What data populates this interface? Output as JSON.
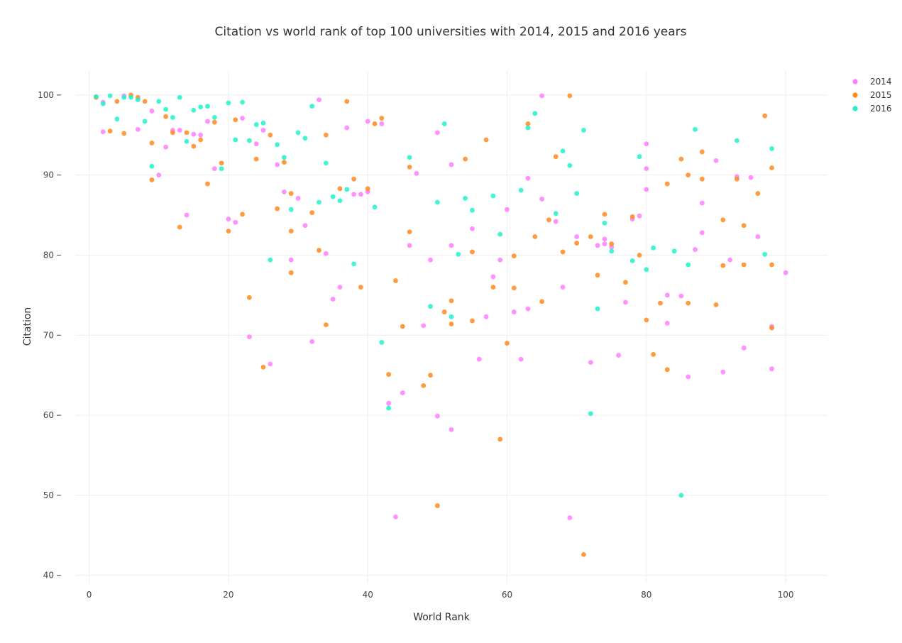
{
  "chart_data": {
    "type": "scatter",
    "title": "Citation vs world rank of top 100 universities with 2014, 2015 and 2016 years",
    "xlabel": "World Rank",
    "ylabel": "Citation",
    "xlim": [
      -2,
      106
    ],
    "ylim": [
      39,
      103
    ],
    "xticks": [
      0,
      20,
      40,
      60,
      80,
      100
    ],
    "yticks": [
      40,
      50,
      60,
      70,
      80,
      90,
      100
    ],
    "grid": true,
    "legend_position": "top-right",
    "series": [
      {
        "name": "2014",
        "color": "#ff7cff",
        "points": [
          [
            2,
            95.4
          ],
          [
            2,
            99.1
          ],
          [
            5,
            99.9
          ],
          [
            7,
            95.7
          ],
          [
            9,
            98
          ],
          [
            10,
            90
          ],
          [
            11,
            93.5
          ],
          [
            12,
            95.6
          ],
          [
            13,
            95.6
          ],
          [
            14,
            85
          ],
          [
            15,
            95.1
          ],
          [
            16,
            95
          ],
          [
            17,
            96.7
          ],
          [
            18,
            90.8
          ],
          [
            20,
            84.5
          ],
          [
            21,
            84.1
          ],
          [
            22,
            97.1
          ],
          [
            23,
            69.8
          ],
          [
            24,
            93.9
          ],
          [
            25,
            95.6
          ],
          [
            26,
            66.4
          ],
          [
            27,
            91.3
          ],
          [
            28,
            87.9
          ],
          [
            29,
            79.4
          ],
          [
            30,
            87.1
          ],
          [
            31,
            83.7
          ],
          [
            32,
            69.2
          ],
          [
            33,
            99.4
          ],
          [
            34,
            80.2
          ],
          [
            35,
            74.5
          ],
          [
            36,
            76
          ],
          [
            37,
            95.9
          ],
          [
            38,
            87.6
          ],
          [
            39,
            87.6
          ],
          [
            40,
            96.7
          ],
          [
            40,
            87.9
          ],
          [
            42,
            96.4
          ],
          [
            43,
            61.5
          ],
          [
            44,
            47.3
          ],
          [
            45,
            62.8
          ],
          [
            47,
            90.2
          ],
          [
            46,
            81.2
          ],
          [
            48,
            71.2
          ],
          [
            49,
            79.4
          ],
          [
            50,
            95.3
          ],
          [
            50,
            59.9
          ],
          [
            52,
            91.3
          ],
          [
            52,
            81.2
          ],
          [
            52,
            58.2
          ],
          [
            55,
            83.3
          ],
          [
            56,
            67
          ],
          [
            57,
            72.3
          ],
          [
            58,
            77.3
          ],
          [
            59,
            79.4
          ],
          [
            60,
            85.7
          ],
          [
            61,
            72.9
          ],
          [
            62,
            67
          ],
          [
            63,
            89.6
          ],
          [
            63,
            73.3
          ],
          [
            65,
            99.9
          ],
          [
            65,
            87
          ],
          [
            67,
            84.2
          ],
          [
            68,
            76
          ],
          [
            69,
            47.2
          ],
          [
            70,
            82.3
          ],
          [
            72,
            66.6
          ],
          [
            73,
            81.2
          ],
          [
            74,
            81.4
          ],
          [
            74,
            82
          ],
          [
            75,
            81
          ],
          [
            76,
            67.5
          ],
          [
            77,
            74.1
          ],
          [
            78,
            84.5
          ],
          [
            79,
            84.9
          ],
          [
            80,
            93.9
          ],
          [
            80,
            90.8
          ],
          [
            80,
            88.2
          ],
          [
            83,
            75
          ],
          [
            83,
            71.5
          ],
          [
            85,
            74.9
          ],
          [
            86,
            64.8
          ],
          [
            87,
            80.7
          ],
          [
            88,
            86.5
          ],
          [
            88,
            82.8
          ],
          [
            90,
            91.8
          ],
          [
            91,
            65.4
          ],
          [
            92,
            79.4
          ],
          [
            93,
            89.8
          ],
          [
            94,
            68.4
          ],
          [
            95,
            89.7
          ],
          [
            96,
            82.3
          ],
          [
            98,
            71.1
          ],
          [
            98,
            65.8
          ],
          [
            100,
            77.8
          ]
        ]
      },
      {
        "name": "2015",
        "color": "#ff8a1c",
        "points": [
          [
            1,
            99.7
          ],
          [
            3,
            95.5
          ],
          [
            4,
            99.2
          ],
          [
            5,
            95.2
          ],
          [
            6,
            100
          ],
          [
            7,
            99.7
          ],
          [
            8,
            99.2
          ],
          [
            9,
            94
          ],
          [
            9,
            89.4
          ],
          [
            11,
            97.3
          ],
          [
            12,
            95.3
          ],
          [
            13,
            83.5
          ],
          [
            14,
            95.3
          ],
          [
            15,
            93.6
          ],
          [
            16,
            94.4
          ],
          [
            17,
            88.9
          ],
          [
            18,
            96.6
          ],
          [
            19,
            91.5
          ],
          [
            20,
            83
          ],
          [
            21,
            96.9
          ],
          [
            22,
            85.1
          ],
          [
            23,
            74.7
          ],
          [
            24,
            92
          ],
          [
            25,
            66
          ],
          [
            26,
            95
          ],
          [
            27,
            85.8
          ],
          [
            28,
            91.6
          ],
          [
            29,
            87.7
          ],
          [
            29,
            83
          ],
          [
            29,
            77.8
          ],
          [
            32,
            85.3
          ],
          [
            33,
            80.6
          ],
          [
            34,
            95
          ],
          [
            34,
            71.3
          ],
          [
            36,
            88.3
          ],
          [
            37,
            99.2
          ],
          [
            38,
            89.5
          ],
          [
            39,
            76
          ],
          [
            40,
            88.3
          ],
          [
            41,
            96.4
          ],
          [
            42,
            97.1
          ],
          [
            43,
            65.1
          ],
          [
            44,
            76.8
          ],
          [
            45,
            71.1
          ],
          [
            46,
            91
          ],
          [
            46,
            82.9
          ],
          [
            48,
            63.7
          ],
          [
            49,
            65
          ],
          [
            50,
            48.7
          ],
          [
            51,
            72.9
          ],
          [
            52,
            74.3
          ],
          [
            52,
            71.4
          ],
          [
            54,
            92
          ],
          [
            55,
            80.4
          ],
          [
            55,
            71.8
          ],
          [
            57,
            94.4
          ],
          [
            58,
            76
          ],
          [
            59,
            57
          ],
          [
            60,
            69
          ],
          [
            61,
            79.9
          ],
          [
            61,
            75.9
          ],
          [
            63,
            96.4
          ],
          [
            64,
            82.3
          ],
          [
            65,
            74.2
          ],
          [
            66,
            84.4
          ],
          [
            67,
            92.3
          ],
          [
            68,
            80.4
          ],
          [
            69,
            99.9
          ],
          [
            70,
            81.5
          ],
          [
            71,
            42.6
          ],
          [
            72,
            82.3
          ],
          [
            73,
            77.5
          ],
          [
            74,
            85.1
          ],
          [
            75,
            81.4
          ],
          [
            77,
            76.6
          ],
          [
            78,
            84.8
          ],
          [
            79,
            80
          ],
          [
            80,
            71.9
          ],
          [
            81,
            67.6
          ],
          [
            82,
            74
          ],
          [
            83,
            88.9
          ],
          [
            83,
            65.7
          ],
          [
            85,
            92
          ],
          [
            86,
            90
          ],
          [
            86,
            74
          ],
          [
            88,
            92.9
          ],
          [
            88,
            89.5
          ],
          [
            90,
            73.8
          ],
          [
            91,
            84.4
          ],
          [
            91,
            78.7
          ],
          [
            93,
            89.5
          ],
          [
            94,
            83.7
          ],
          [
            94,
            78.8
          ],
          [
            96,
            87.7
          ],
          [
            97,
            97.4
          ],
          [
            98,
            90.9
          ],
          [
            98,
            78.8
          ],
          [
            98,
            70.9
          ]
        ]
      },
      {
        "name": "2016",
        "color": "#1ef2cc",
        "points": [
          [
            1,
            99.8
          ],
          [
            2,
            98.9
          ],
          [
            3,
            99.9
          ],
          [
            4,
            97
          ],
          [
            5,
            99.7
          ],
          [
            6,
            99.7
          ],
          [
            7,
            99.4
          ],
          [
            8,
            96.7
          ],
          [
            9,
            91.1
          ],
          [
            10,
            99.2
          ],
          [
            11,
            98.2
          ],
          [
            12,
            97.2
          ],
          [
            13,
            99.7
          ],
          [
            14,
            94.2
          ],
          [
            15,
            98.1
          ],
          [
            16,
            98.5
          ],
          [
            17,
            98.6
          ],
          [
            18,
            97.2
          ],
          [
            19,
            90.8
          ],
          [
            20,
            99
          ],
          [
            21,
            94.4
          ],
          [
            22,
            99.1
          ],
          [
            23,
            94.3
          ],
          [
            24,
            96.3
          ],
          [
            25,
            96.5
          ],
          [
            26,
            79.4
          ],
          [
            27,
            93.8
          ],
          [
            28,
            92.2
          ],
          [
            29,
            85.7
          ],
          [
            30,
            95.3
          ],
          [
            31,
            94.6
          ],
          [
            32,
            98.6
          ],
          [
            33,
            86.6
          ],
          [
            34,
            91.5
          ],
          [
            35,
            87.3
          ],
          [
            36,
            86.8
          ],
          [
            37,
            88.2
          ],
          [
            38,
            78.9
          ],
          [
            41,
            86
          ],
          [
            42,
            69.1
          ],
          [
            43,
            60.9
          ],
          [
            46,
            92.2
          ],
          [
            49,
            73.6
          ],
          [
            50,
            86.6
          ],
          [
            51,
            96.4
          ],
          [
            52,
            72.3
          ],
          [
            53,
            80.1
          ],
          [
            54,
            87.1
          ],
          [
            55,
            85.6
          ],
          [
            58,
            87.4
          ],
          [
            59,
            82.6
          ],
          [
            62,
            88.1
          ],
          [
            63,
            95.9
          ],
          [
            64,
            97.7
          ],
          [
            67,
            85.2
          ],
          [
            68,
            93
          ],
          [
            69,
            91.2
          ],
          [
            70,
            87.7
          ],
          [
            71,
            95.6
          ],
          [
            72,
            60.2
          ],
          [
            73,
            73.3
          ],
          [
            74,
            84
          ],
          [
            75,
            80.5
          ],
          [
            78,
            79.3
          ],
          [
            79,
            92.3
          ],
          [
            80,
            78.2
          ],
          [
            81,
            80.9
          ],
          [
            84,
            80.5
          ],
          [
            85,
            50
          ],
          [
            86,
            78.8
          ],
          [
            87,
            95.7
          ],
          [
            93,
            94.3
          ],
          [
            97,
            80.1
          ],
          [
            98,
            93.3
          ]
        ]
      }
    ]
  }
}
